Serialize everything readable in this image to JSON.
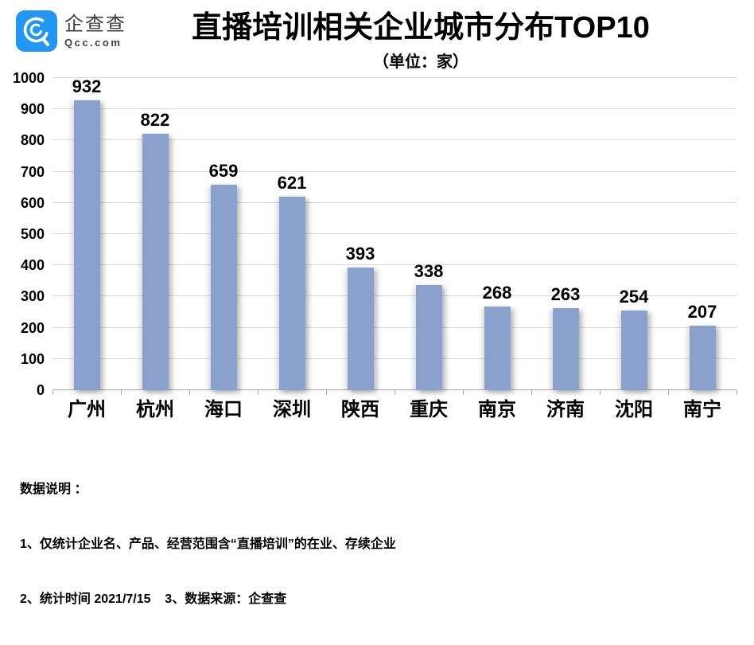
{
  "brand": {
    "name_cn": "企查查",
    "domain": "Qcc.com",
    "brand_blue": "#2196f3"
  },
  "header": {
    "title": "直播培训相关企业城市分布TOP10",
    "subtitle": "（单位：家）"
  },
  "chart_data": {
    "type": "bar",
    "title": "直播培训相关企业城市分布TOP10",
    "subtitle": "（单位：家）",
    "categories": [
      "广州",
      "杭州",
      "海口",
      "深圳",
      "陕西",
      "重庆",
      "南京",
      "济南",
      "沈阳",
      "南宁"
    ],
    "values": [
      932,
      822,
      659,
      621,
      393,
      338,
      268,
      263,
      254,
      207
    ],
    "xlabel": "",
    "ylabel": "",
    "ylim": [
      0,
      1000
    ],
    "ytick_step": 100,
    "grid": "horizontal",
    "legend": "none",
    "value_labels": true,
    "bar_color": "#8ba1cd",
    "gridline_color": "#d9d9d9",
    "axis_color": "#a9a9a9"
  },
  "footer": {
    "heading": "数据说明 ：",
    "line1": "1、仅统计企业名、产品、经营范围含“直播培训”的在业、存续企业",
    "line2": "2、统计时间 2021/7/15    3、数据来源：企查查"
  }
}
